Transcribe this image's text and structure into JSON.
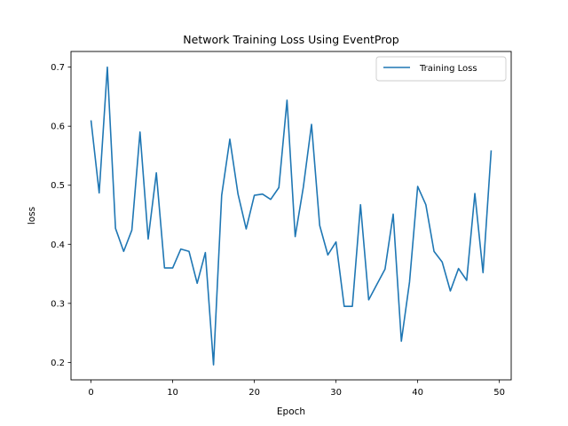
{
  "chart_data": {
    "type": "line",
    "title": "Network Training Loss Using EventProp",
    "xlabel": "Epoch",
    "ylabel": "loss",
    "xlim": [
      -2.45,
      51.45
    ],
    "ylim": [
      0.1705,
      0.7265
    ],
    "xticks": [
      0,
      10,
      20,
      30,
      40,
      50
    ],
    "yticks": [
      0.2,
      0.3,
      0.4,
      0.5,
      0.6,
      0.7
    ],
    "grid": false,
    "legend_position": "top-right",
    "series": [
      {
        "name": "Training Loss",
        "color": "#1f77b4",
        "x": [
          0,
          1,
          2,
          3,
          4,
          5,
          6,
          7,
          8,
          9,
          10,
          11,
          12,
          13,
          14,
          15,
          16,
          17,
          18,
          19,
          20,
          21,
          22,
          23,
          24,
          25,
          26,
          27,
          28,
          29,
          30,
          31,
          32,
          33,
          34,
          35,
          36,
          37,
          38,
          39,
          40,
          41,
          42,
          43,
          44,
          45,
          46,
          47,
          48,
          49
        ],
        "values": [
          0.61,
          0.487,
          0.7,
          0.427,
          0.388,
          0.424,
          0.59,
          0.409,
          0.521,
          0.36,
          0.36,
          0.392,
          0.388,
          0.334,
          0.386,
          0.196,
          0.483,
          0.578,
          0.485,
          0.426,
          0.483,
          0.485,
          0.476,
          0.496,
          0.644,
          0.413,
          0.497,
          0.603,
          0.432,
          0.382,
          0.404,
          0.295,
          0.295,
          0.467,
          0.306,
          0.332,
          0.358,
          0.451,
          0.236,
          0.336,
          0.498,
          0.467,
          0.388,
          0.37,
          0.321,
          0.359,
          0.339,
          0.486,
          0.352,
          0.559
        ]
      }
    ]
  }
}
